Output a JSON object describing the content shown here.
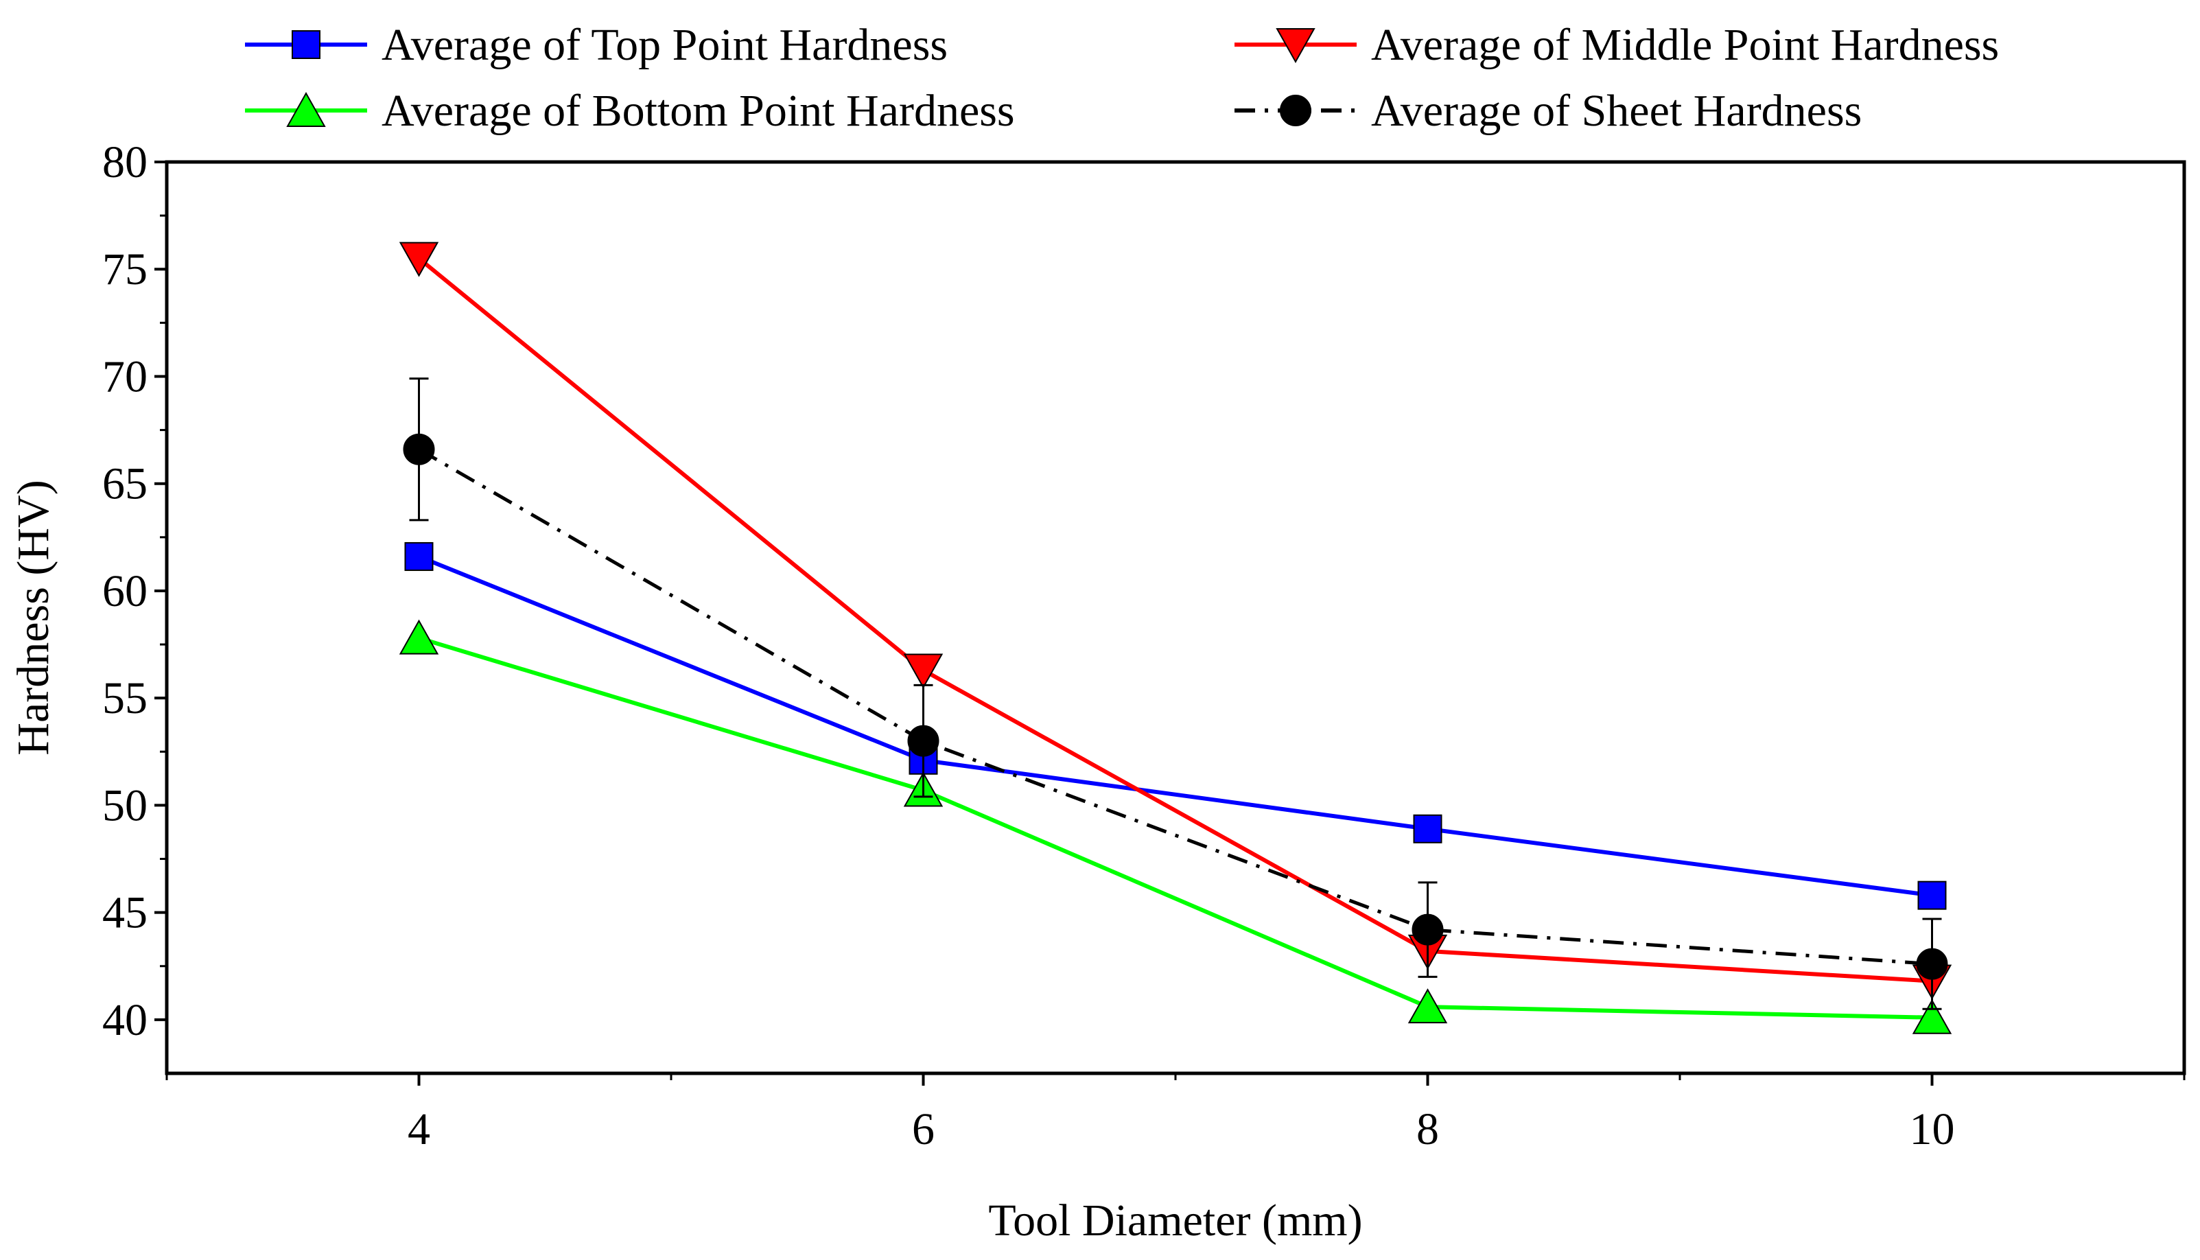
{
  "chart_data": {
    "type": "line",
    "title": "",
    "xlabel": "Tool Diameter (mm)",
    "ylabel": "Hardness (HV)",
    "xlim": [
      3,
      11
    ],
    "ylim": [
      37.5,
      80
    ],
    "xticks": [
      4,
      6,
      8,
      10
    ],
    "yticks": [
      40,
      45,
      50,
      55,
      60,
      65,
      70,
      75,
      80
    ],
    "grid": false,
    "legend_position": "top",
    "x": [
      4,
      6,
      8,
      10
    ],
    "series": [
      {
        "name": "Average of Top Point Hardness",
        "values": [
          61.6,
          52.1,
          48.9,
          45.8
        ],
        "color": "#0000ff",
        "marker": "square",
        "line_style": "solid"
      },
      {
        "name": "Average of Middle Point Hardness",
        "values": [
          75.5,
          56.3,
          43.2,
          41.8
        ],
        "color": "#ff0000",
        "marker": "triangle-down",
        "line_style": "solid"
      },
      {
        "name": "Average of Bottom Point Hardness",
        "values": [
          57.8,
          50.7,
          40.6,
          40.1
        ],
        "color": "#00ff00",
        "marker": "triangle-up",
        "line_style": "solid"
      },
      {
        "name": "Average of Sheet Hardness",
        "values": [
          66.6,
          53.0,
          44.2,
          42.6
        ],
        "errors": [
          3.3,
          2.6,
          2.2,
          2.1
        ],
        "color": "#000000",
        "marker": "circle",
        "line_style": "dash-dot"
      }
    ]
  }
}
